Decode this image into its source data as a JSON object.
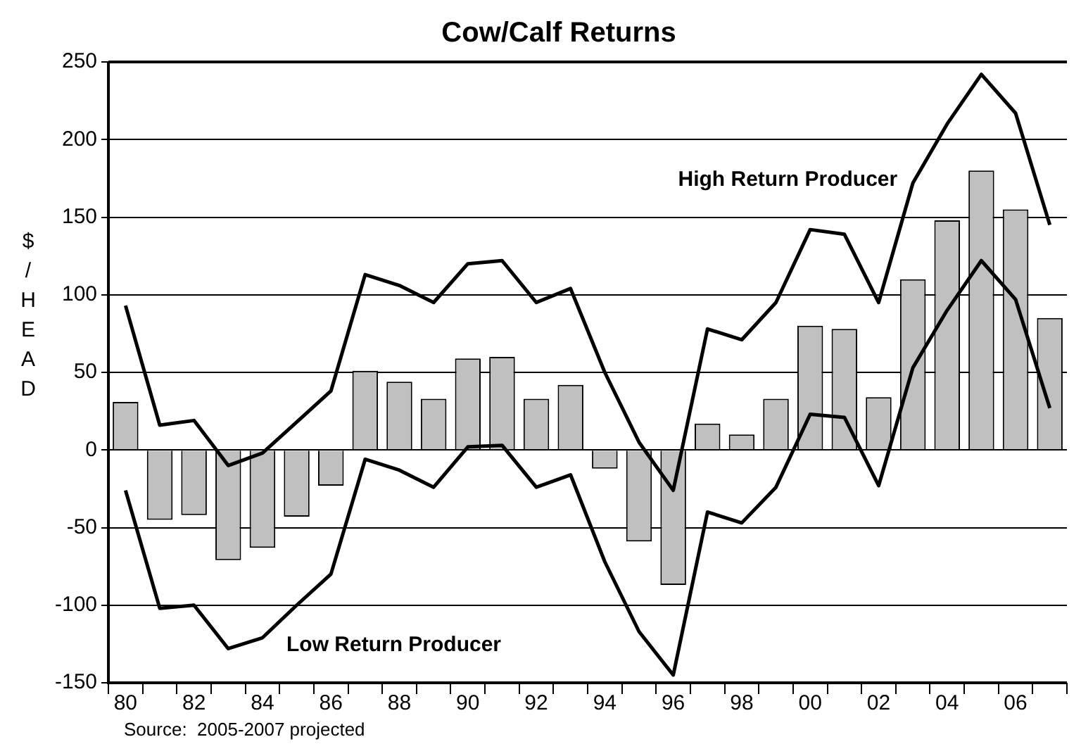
{
  "chart_data": {
    "type": "bar",
    "title": "Cow/Calf Returns",
    "ylabel": "$/HEAD",
    "categories": [
      "80",
      null,
      "82",
      null,
      "84",
      null,
      "86",
      null,
      "88",
      null,
      "90",
      null,
      "92",
      null,
      "94",
      null,
      "96",
      null,
      "98",
      null,
      "00",
      null,
      "02",
      null,
      "04",
      null,
      "06",
      null
    ],
    "series": [
      {
        "color": "#c0c0c0",
        "values": [
          31,
          -45,
          -42,
          -71,
          -63,
          -43,
          -23,
          51,
          44,
          33,
          59,
          60,
          33,
          42,
          -12,
          -59,
          -87,
          17,
          10,
          33,
          80,
          78,
          34,
          110,
          148,
          180,
          155,
          85
        ]
      },
      {
        "type": "line",
        "name": "High Return Producer",
        "color": "#000000",
        "values": [
          93,
          16,
          19,
          -10,
          -2,
          18,
          38,
          113,
          106,
          95,
          120,
          122,
          95,
          104,
          50,
          5,
          -26,
          78,
          71,
          95,
          142,
          139,
          95,
          172,
          210,
          242,
          217,
          145
        ]
      },
      {
        "type": "line",
        "name": "Low Return Producer",
        "color": "#000000",
        "values": [
          -26,
          -102,
          -100,
          -128,
          -121,
          -100,
          -80,
          -6,
          -13,
          -24,
          2,
          3,
          -24,
          -16,
          -72,
          -117,
          -145,
          -40,
          -47,
          -24,
          23,
          21,
          -23,
          53,
          90,
          122,
          97,
          27
        ]
      }
    ],
    "ylim": [
      -150,
      250
    ],
    "yticks": [
      -150,
      -100,
      -50,
      0,
      50,
      100,
      150,
      200,
      250
    ],
    "grid": "y",
    "legend": false,
    "marker": "none",
    "line_style": "solid",
    "annotations": [
      "Source:  2005-2007 projected"
    ]
  }
}
